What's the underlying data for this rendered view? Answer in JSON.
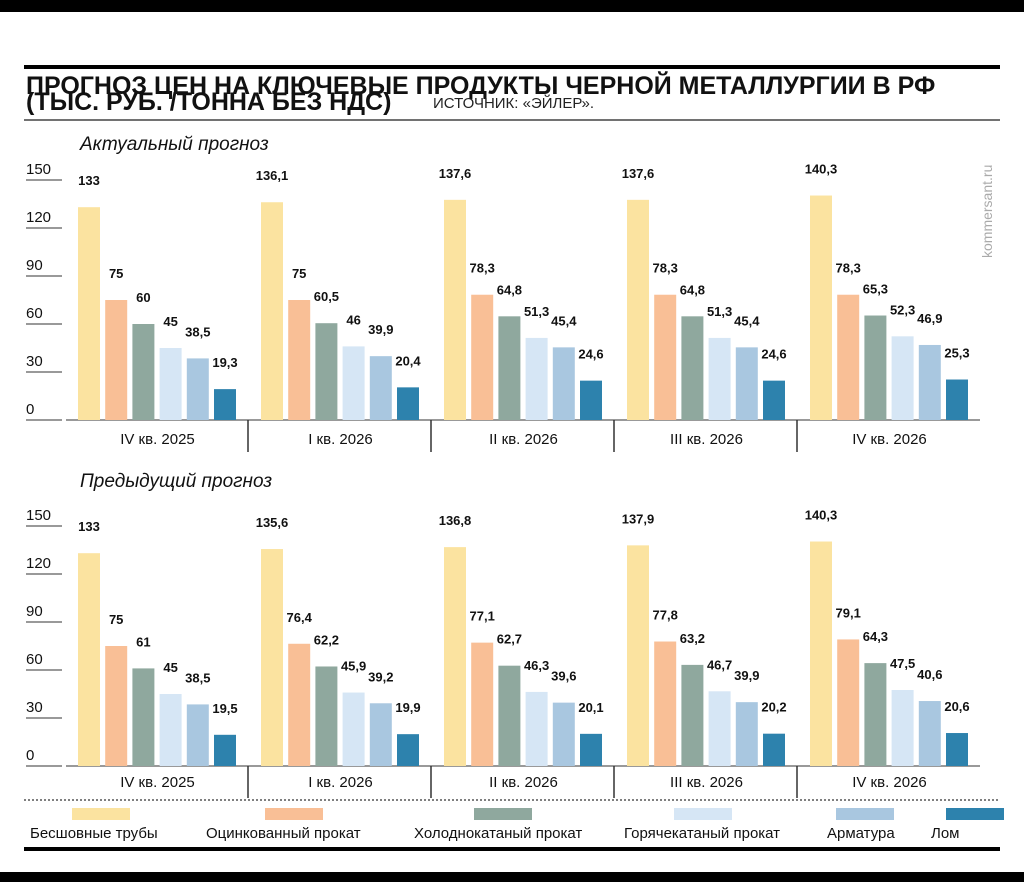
{
  "title_line1": "ПРОГНОЗ ЦЕН НА КЛЮЧЕВЫЕ ПРОДУКТЫ ЧЕРНОЙ МЕТАЛЛУРГИИ В РФ",
  "title_line2": "(ТЫС. РУБ. /ТОННА БЕЗ НДС)",
  "source": "ИСТОЧНИК: «ЭЙЛЕР».",
  "watermark": "kommersant.ru",
  "colors": [
    "#fbe3a0",
    "#f9bf96",
    "#8fa89e",
    "#d6e6f5",
    "#a9c7e0",
    "#2d82ad"
  ],
  "legend": [
    "Бесшовные трубы",
    "Оцинкованный прокат",
    "Холоднокатаный прокат",
    "Горячекатаный прокат",
    "Арматура",
    "Лом"
  ],
  "chart_data": [
    {
      "type": "bar",
      "title": "Актуальный прогноз",
      "categories": [
        "IV кв. 2025",
        "I кв. 2026",
        "II кв. 2026",
        "III кв. 2026",
        "IV кв. 2026"
      ],
      "yticks": [
        0,
        30,
        60,
        90,
        120,
        150
      ],
      "ylim": [
        0,
        150
      ],
      "series": [
        {
          "name": "Бесшовные трубы",
          "values": [
            133,
            136.1,
            137.6,
            137.6,
            140.3
          ],
          "labels": [
            "133",
            "136,1",
            "137,6",
            "137,6",
            "140,3"
          ]
        },
        {
          "name": "Оцинкованный прокат",
          "values": [
            75,
            75,
            78.3,
            78.3,
            78.3
          ],
          "labels": [
            "75",
            "75",
            "78,3",
            "78,3",
            "78,3"
          ]
        },
        {
          "name": "Холоднокатаный прокат",
          "values": [
            60,
            60.5,
            64.8,
            64.8,
            65.3
          ],
          "labels": [
            "60",
            "60,5",
            "64,8",
            "64,8",
            "65,3"
          ]
        },
        {
          "name": "Горячекатаный прокат",
          "values": [
            45,
            46,
            51.3,
            51.3,
            52.3
          ],
          "labels": [
            "45",
            "46",
            "51,3",
            "51,3",
            "52,3"
          ]
        },
        {
          "name": "Арматура",
          "values": [
            38.5,
            39.9,
            45.4,
            45.4,
            46.9
          ],
          "labels": [
            "38,5",
            "39,9",
            "45,4",
            "45,4",
            "46,9"
          ]
        },
        {
          "name": "Лом",
          "values": [
            19.3,
            20.4,
            24.6,
            24.6,
            25.3
          ],
          "labels": [
            "19,3",
            "20,4",
            "24,6",
            "24,6",
            "25,3"
          ]
        }
      ]
    },
    {
      "type": "bar",
      "title": "Предыдущий прогноз",
      "categories": [
        "IV кв. 2025",
        "I кв. 2026",
        "II кв. 2026",
        "III кв. 2026",
        "IV кв. 2026"
      ],
      "yticks": [
        0,
        30,
        60,
        90,
        120,
        150
      ],
      "ylim": [
        0,
        150
      ],
      "series": [
        {
          "name": "Бесшовные трубы",
          "values": [
            133,
            135.6,
            136.8,
            137.9,
            140.3
          ],
          "labels": [
            "133",
            "135,6",
            "136,8",
            "137,9",
            "140,3"
          ]
        },
        {
          "name": "Оцинкованный прокат",
          "values": [
            75,
            76.4,
            77.1,
            77.8,
            79.1
          ],
          "labels": [
            "75",
            "76,4",
            "77,1",
            "77,8",
            "79,1"
          ]
        },
        {
          "name": "Холоднокатаный прокат",
          "values": [
            61,
            62.2,
            62.7,
            63.2,
            64.3
          ],
          "labels": [
            "61",
            "62,2",
            "62,7",
            "63,2",
            "64,3"
          ]
        },
        {
          "name": "Горячекатаный прокат",
          "values": [
            45,
            45.9,
            46.3,
            46.7,
            47.5
          ],
          "labels": [
            "45",
            "45,9",
            "46,3",
            "46,7",
            "47,5"
          ]
        },
        {
          "name": "Арматура",
          "values": [
            38.5,
            39.2,
            39.6,
            39.9,
            40.6
          ],
          "labels": [
            "38,5",
            "39,2",
            "39,6",
            "39,9",
            "40,6"
          ]
        },
        {
          "name": "Лом",
          "values": [
            19.5,
            19.9,
            20.1,
            20.2,
            20.6
          ],
          "labels": [
            "19,5",
            "19,9",
            "20,1",
            "20,2",
            "20,6"
          ]
        }
      ]
    }
  ]
}
